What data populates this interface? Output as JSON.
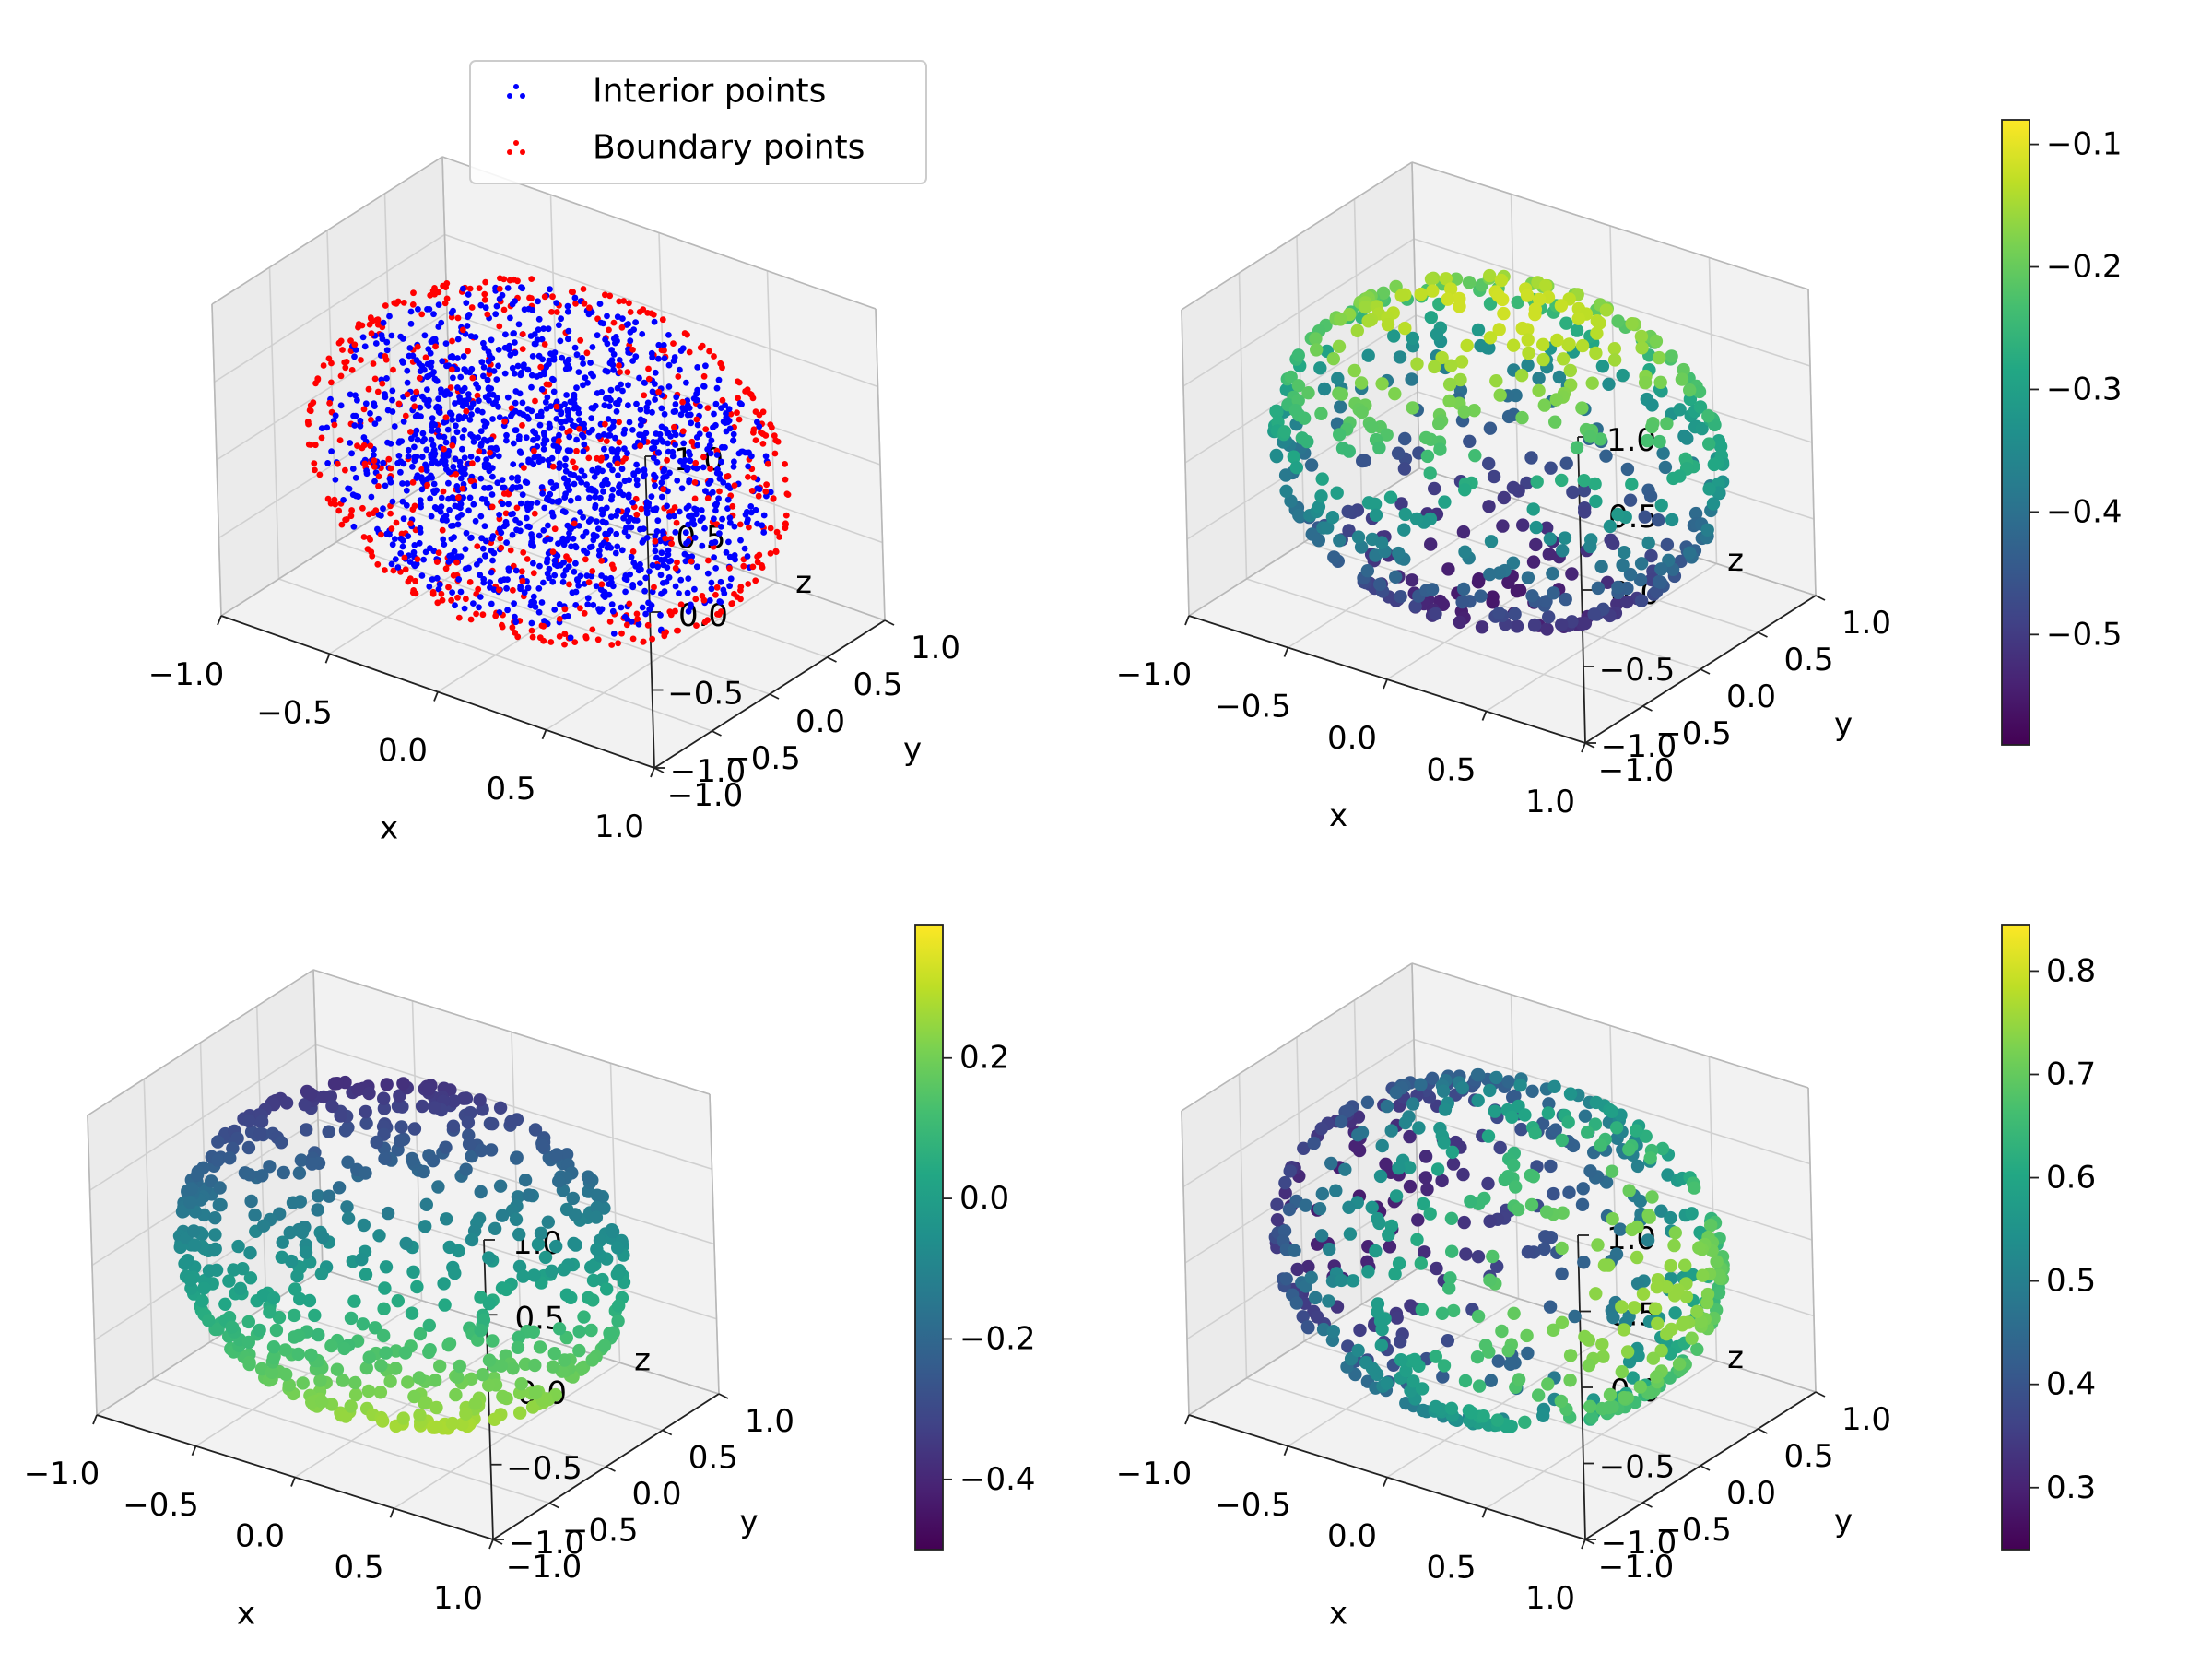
{
  "figure": {
    "background": "#ffffff"
  },
  "chart_data": [
    {
      "type": "scatter3d",
      "title": "",
      "xlabel": "x",
      "ylabel": "y",
      "zlabel": "z",
      "xlim": [
        -1.0,
        1.0
      ],
      "ylim": [
        -1.0,
        1.0
      ],
      "zlim": [
        -1.0,
        1.0
      ],
      "ticks": {
        "x": [
          "−1.0",
          "−0.5",
          "0.0",
          "0.5",
          "1.0"
        ],
        "y": [
          "−1.0",
          "−0.5",
          "0.0",
          "0.5",
          "1.0"
        ],
        "z": [
          "−1.0",
          "−0.5",
          "0.0",
          "0.5",
          "1.0"
        ]
      },
      "grid": true,
      "legend_position": "top-center",
      "series": [
        {
          "name": "Interior points",
          "color": "#0000ff",
          "region": "ball interior (r < 1)",
          "approx_count": 1500
        },
        {
          "name": "Boundary points",
          "color": "#ff0000",
          "region": "unit sphere surface (r = 1)",
          "approx_count": 600
        }
      ]
    },
    {
      "type": "scatter3d",
      "xlabel": "x",
      "ylabel": "y",
      "zlabel": "z",
      "xlim": [
        -1.0,
        1.0
      ],
      "ylim": [
        -1.0,
        1.0
      ],
      "zlim": [
        -1.0,
        1.0
      ],
      "ticks": {
        "x": [
          "−1.0",
          "−0.5",
          "0.0",
          "0.5",
          "1.0"
        ],
        "y": [
          "−1.0",
          "−0.5",
          "0.0",
          "0.5",
          "1.0"
        ],
        "z": [
          "−1.0",
          "−0.5",
          "0.0",
          "0.5",
          "1.0"
        ]
      },
      "colormap": "viridis",
      "color_range": [
        -0.59,
        -0.08
      ],
      "colorbar_ticks": [
        "−0.1",
        "−0.2",
        "−0.3",
        "−0.4",
        "−0.5"
      ],
      "colorbar_tick_values": [
        -0.1,
        -0.2,
        -0.3,
        -0.4,
        -0.5
      ],
      "points": "unit sphere surface, ~600 points, value highest near top, lowest near bottom"
    },
    {
      "type": "scatter3d",
      "xlabel": "x",
      "ylabel": "y",
      "zlabel": "z",
      "xlim": [
        -1.0,
        1.0
      ],
      "ylim": [
        -1.0,
        1.0
      ],
      "zlim": [
        -1.0,
        1.0
      ],
      "ticks": {
        "x": [
          "−1.0",
          "−0.5",
          "0.0",
          "0.5",
          "1.0"
        ],
        "y": [
          "−1.0",
          "−0.5",
          "0.0",
          "0.5",
          "1.0"
        ],
        "z": [
          "−1.0",
          "−0.5",
          "0.0",
          "0.5",
          "1.0"
        ]
      },
      "colormap": "viridis",
      "color_range": [
        -0.5,
        0.39
      ],
      "colorbar_ticks": [
        "0.2",
        "0.0",
        "−0.2",
        "−0.4"
      ],
      "colorbar_tick_values": [
        0.2,
        0.0,
        -0.2,
        -0.4
      ],
      "points": "unit sphere surface, ~600 points, value highest near bottom-front, lowest near top-right"
    },
    {
      "type": "scatter3d",
      "xlabel": "x",
      "ylabel": "y",
      "zlabel": "z",
      "xlim": [
        -1.0,
        1.0
      ],
      "ylim": [
        -1.0,
        1.0
      ],
      "zlim": [
        -1.0,
        1.0
      ],
      "ticks": {
        "x": [
          "−1.0",
          "−0.5",
          "0.0",
          "0.5",
          "1.0"
        ],
        "y": [
          "−1.0",
          "−0.5",
          "0.0",
          "0.5",
          "1.0"
        ],
        "z": [
          "−1.0",
          "−0.5",
          "0.0",
          "0.5",
          "1.0"
        ]
      },
      "colormap": "viridis",
      "color_range": [
        0.24,
        0.845
      ],
      "colorbar_ticks": [
        "0.8",
        "0.7",
        "0.6",
        "0.5",
        "0.4",
        "0.3"
      ],
      "colorbar_tick_values": [
        0.8,
        0.7,
        0.6,
        0.5,
        0.4,
        0.3
      ],
      "points": "unit sphere surface, ~600 points, value highest on right side, lowest on left side"
    }
  ]
}
